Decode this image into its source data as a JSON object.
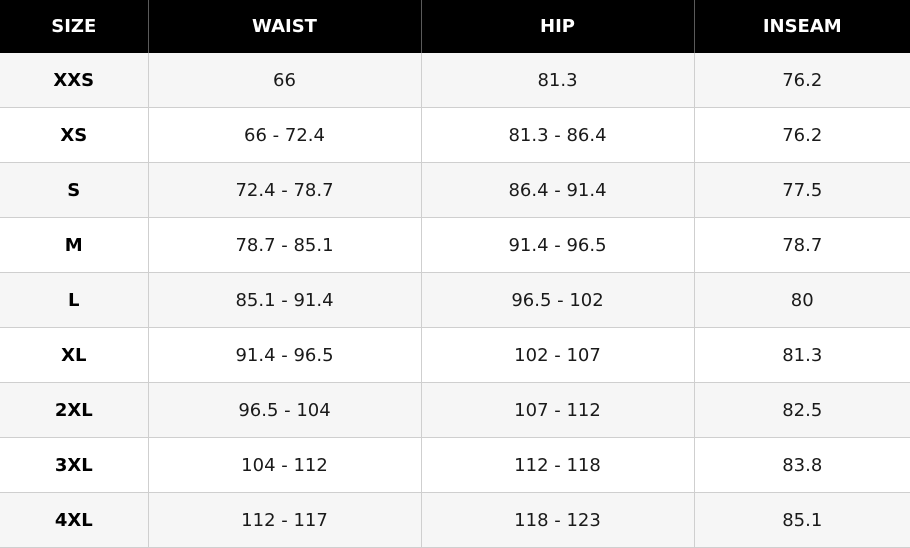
{
  "headers": [
    "SIZE",
    "WAIST",
    "HIP",
    "INSEAM"
  ],
  "rows": [
    [
      "XXS",
      "66",
      "81.3",
      "76.2"
    ],
    [
      "XS",
      "66 - 72.4",
      "81.3 - 86.4",
      "76.2"
    ],
    [
      "S",
      "72.4 - 78.7",
      "86.4 - 91.4",
      "77.5"
    ],
    [
      "M",
      "78.7 - 85.1",
      "91.4 - 96.5",
      "78.7"
    ],
    [
      "L",
      "85.1 - 91.4",
      "96.5 - 102",
      "80"
    ],
    [
      "XL",
      "91.4 - 96.5",
      "102 - 107",
      "81.3"
    ],
    [
      "2XL",
      "96.5 - 104",
      "107 - 112",
      "82.5"
    ],
    [
      "3XL",
      "104 - 112",
      "112 - 118",
      "83.8"
    ],
    [
      "4XL",
      "112 - 117",
      "118 - 123",
      "85.1"
    ]
  ],
  "colors": {
    "header_bg": "#000000",
    "header_text": "#ffffff",
    "row_alt_bg": "#f6f6f6",
    "row_bg": "#ffffff",
    "grid_line": "#cfcfcf"
  }
}
